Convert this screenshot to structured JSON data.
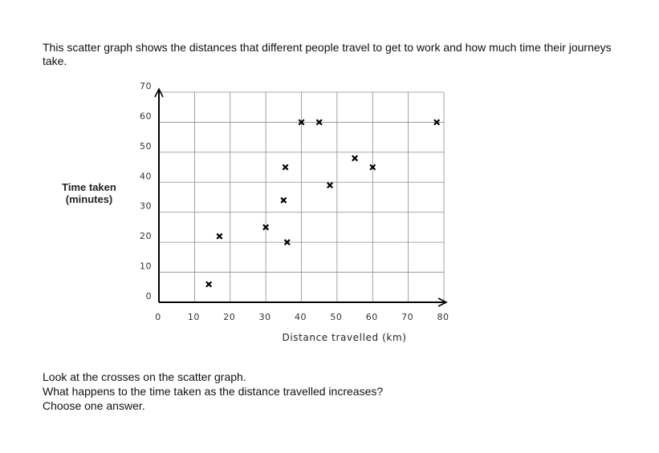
{
  "intro_text": "This scatter graph shows the distances that different people travel to get to work and how much time their journeys take.",
  "question": {
    "line1": "Look at the crosses on the scatter graph.",
    "line2": "What happens to the time taken as the distance travelled increases?",
    "line3": "Choose one answer."
  },
  "chart_data": {
    "type": "scatter",
    "title": "",
    "xlabel": "Distance travelled (km)",
    "ylabel_line1": "Time taken",
    "ylabel_line2": "(minutes)",
    "xlim": [
      0,
      80
    ],
    "ylim": [
      0,
      70
    ],
    "xticks": [
      "0",
      "10",
      "20",
      "30",
      "40",
      "50",
      "60",
      "70",
      "80"
    ],
    "yticks": [
      "0",
      "10",
      "20",
      "30",
      "40",
      "50",
      "60",
      "70"
    ],
    "grid": true,
    "marker": "cross",
    "points": [
      {
        "x": 14,
        "y": 6
      },
      {
        "x": 17,
        "y": 22
      },
      {
        "x": 30,
        "y": 25
      },
      {
        "x": 35,
        "y": 34
      },
      {
        "x": 35.5,
        "y": 45
      },
      {
        "x": 36,
        "y": 20
      },
      {
        "x": 40,
        "y": 60
      },
      {
        "x": 45,
        "y": 60
      },
      {
        "x": 48,
        "y": 39
      },
      {
        "x": 55,
        "y": 48
      },
      {
        "x": 60,
        "y": 45
      },
      {
        "x": 78,
        "y": 60
      }
    ]
  }
}
